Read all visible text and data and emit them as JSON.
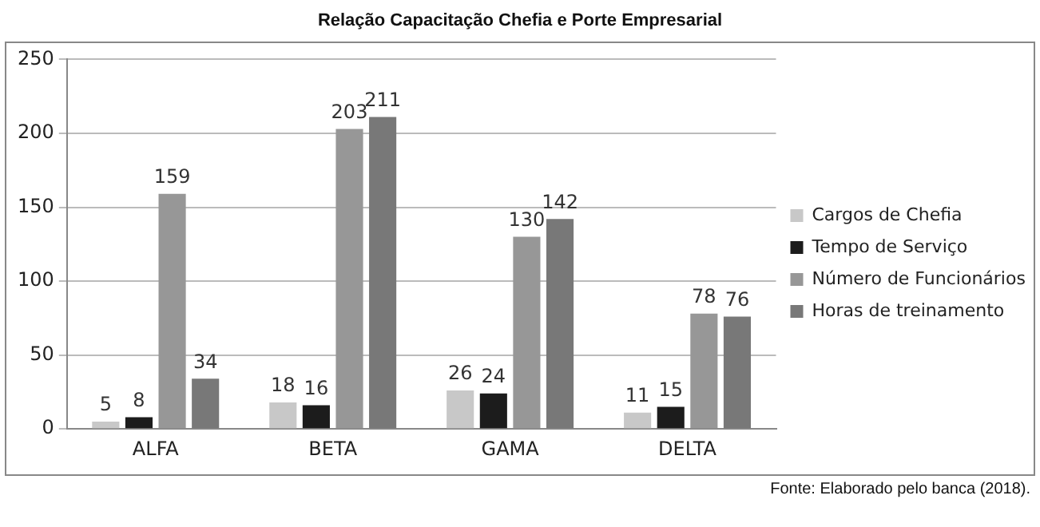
{
  "chart_data": {
    "type": "bar",
    "title": "Relação Capacitação Chefia e Porte Empresarial",
    "categories": [
      "ALFA",
      "BETA",
      "GAMA",
      "DELTA"
    ],
    "series": [
      {
        "name": "Cargos de Chefia",
        "color": "#c8c8c8",
        "values": [
          5,
          18,
          26,
          11
        ]
      },
      {
        "name": "Tempo de Serviço",
        "color": "#1c1c1c",
        "values": [
          8,
          16,
          24,
          15
        ]
      },
      {
        "name": "Número de Funcionários",
        "color": "#979797",
        "values": [
          159,
          203,
          130,
          78
        ]
      },
      {
        "name": "Horas de treinamento",
        "color": "#787878",
        "values": [
          34,
          211,
          142,
          76
        ]
      }
    ],
    "ylim": [
      0,
      250
    ],
    "yticks": [
      0,
      50,
      100,
      150,
      200,
      250
    ],
    "grid": "y",
    "legend": "right",
    "data_labels": true,
    "annotations": [
      "Fonte: Elaborado pelo banca (2018)."
    ]
  }
}
